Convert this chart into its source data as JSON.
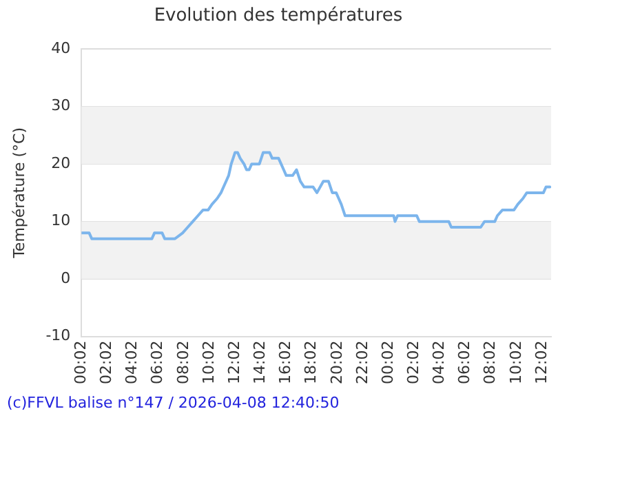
{
  "chart_data": {
    "type": "line",
    "title": "Evolution des températures",
    "ylabel": "Température (°C)",
    "annotations": [
      "(c)FFVL balise n°147 / 2026-04-08 12:40:50"
    ],
    "xlim": [
      "2026-04-07T00:02",
      "2026-04-08T12:44"
    ],
    "ylim": [
      -10,
      40
    ],
    "yticks": [
      -10,
      0,
      10,
      20,
      30,
      40
    ],
    "xticks": [
      {
        "value": "2026-04-07T00:02",
        "label": "00:02"
      },
      {
        "value": "2026-04-07T02:02",
        "label": "02:02"
      },
      {
        "value": "2026-04-07T04:02",
        "label": "04:02"
      },
      {
        "value": "2026-04-07T06:02",
        "label": "06:02"
      },
      {
        "value": "2026-04-07T08:02",
        "label": "08:02"
      },
      {
        "value": "2026-04-07T10:02",
        "label": "10:02"
      },
      {
        "value": "2026-04-07T12:02",
        "label": "12:02"
      },
      {
        "value": "2026-04-07T14:02",
        "label": "14:02"
      },
      {
        "value": "2026-04-07T16:02",
        "label": "16:02"
      },
      {
        "value": "2026-04-07T18:02",
        "label": "18:02"
      },
      {
        "value": "2026-04-07T20:02",
        "label": "20:02"
      },
      {
        "value": "2026-04-07T22:02",
        "label": "22:02"
      },
      {
        "value": "2026-04-08T00:02",
        "label": "00:02"
      },
      {
        "value": "2026-04-08T02:02",
        "label": "02:02"
      },
      {
        "value": "2026-04-08T04:02",
        "label": "04:02"
      },
      {
        "value": "2026-04-08T06:02",
        "label": "06:02"
      },
      {
        "value": "2026-04-08T08:02",
        "label": "08:02"
      },
      {
        "value": "2026-04-08T10:02",
        "label": "10:02"
      },
      {
        "value": "2026-04-08T12:02",
        "label": "12:02"
      }
    ],
    "grid": "y",
    "legend": false,
    "marker": "none",
    "line_style": "solid",
    "bands": [
      {
        "axis": "y",
        "from": 0,
        "to": 10,
        "color": "#f2f2f2"
      },
      {
        "axis": "y",
        "from": 20,
        "to": 30,
        "color": "#f2f2f2"
      }
    ],
    "series": [
      {
        "color": "#7cb5ec",
        "x": [
          "2026-04-07T00:02",
          "2026-04-07T00:38",
          "2026-04-07T00:50",
          "2026-04-07T05:32",
          "2026-04-07T05:44",
          "2026-04-07T06:20",
          "2026-04-07T06:32",
          "2026-04-07T07:20",
          "2026-04-07T07:56",
          "2026-04-07T08:20",
          "2026-04-07T08:44",
          "2026-04-07T09:08",
          "2026-04-07T09:32",
          "2026-04-07T09:56",
          "2026-04-07T10:14",
          "2026-04-07T10:38",
          "2026-04-07T10:56",
          "2026-04-07T11:08",
          "2026-04-07T11:20",
          "2026-04-07T11:32",
          "2026-04-07T11:38",
          "2026-04-07T11:44",
          "2026-04-07T11:53",
          "2026-04-07T12:02",
          "2026-04-07T12:14",
          "2026-04-07T12:26",
          "2026-04-07T12:44",
          "2026-04-07T12:56",
          "2026-04-07T13:08",
          "2026-04-07T13:20",
          "2026-04-07T13:56",
          "2026-04-07T14:14",
          "2026-04-07T14:44",
          "2026-04-07T14:56",
          "2026-04-07T15:26",
          "2026-04-07T15:38",
          "2026-04-07T15:50",
          "2026-04-07T16:02",
          "2026-04-07T16:32",
          "2026-04-07T16:50",
          "2026-04-07T17:08",
          "2026-04-07T17:26",
          "2026-04-07T18:08",
          "2026-04-07T18:26",
          "2026-04-07T18:56",
          "2026-04-07T19:20",
          "2026-04-07T19:38",
          "2026-04-07T19:56",
          "2026-04-07T20:08",
          "2026-04-07T20:20",
          "2026-04-07T20:38",
          "2026-04-08T00:26",
          "2026-04-08T00:32",
          "2026-04-08T00:44",
          "2026-04-08T02:14",
          "2026-04-08T02:26",
          "2026-04-08T04:44",
          "2026-04-08T04:56",
          "2026-04-08T07:14",
          "2026-04-08T07:32",
          "2026-04-08T08:20",
          "2026-04-08T08:32",
          "2026-04-08T08:56",
          "2026-04-08T09:50",
          "2026-04-08T10:08",
          "2026-04-08T10:32",
          "2026-04-08T10:50",
          "2026-04-08T12:08",
          "2026-04-08T12:20",
          "2026-04-08T12:38"
        ],
        "values": [
          8,
          8,
          7,
          7,
          8,
          8,
          7,
          7,
          8,
          9,
          10,
          11,
          12,
          12,
          13,
          14,
          15,
          16,
          17,
          18,
          19,
          20,
          21,
          22,
          22,
          21,
          20,
          19,
          19,
          20,
          20,
          22,
          22,
          21,
          21,
          20,
          19,
          18,
          18,
          19,
          17,
          16,
          16,
          15,
          17,
          17,
          15,
          15,
          14,
          13,
          11,
          11,
          10,
          11,
          11,
          10,
          10,
          9,
          9,
          10,
          10,
          11,
          12,
          12,
          13,
          14,
          15,
          15,
          16,
          16
        ]
      }
    ]
  }
}
